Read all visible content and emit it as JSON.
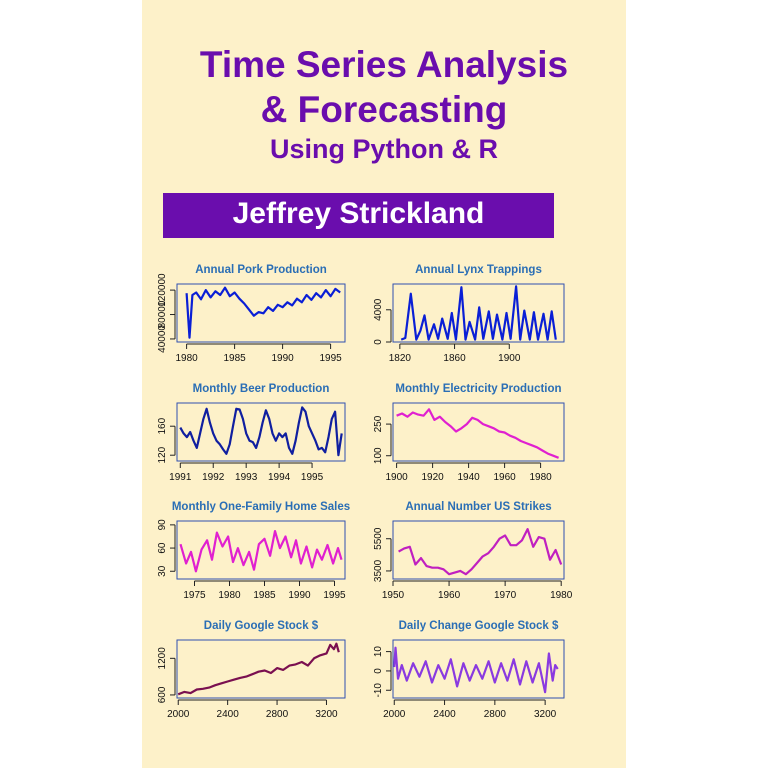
{
  "book": {
    "title_line1": "Time Series Analysis",
    "title_line2": "& Forecasting",
    "title_line3": "Using Python & R",
    "author": "Jeffrey Strickland"
  },
  "colors": {
    "background": "#fdf1c9",
    "title": "#6a0dad",
    "author_box": "#6a0dad",
    "chart_title": "#2a6eb5"
  },
  "chart_data": [
    {
      "type": "line",
      "title": "Annual Pork Production",
      "color": "#0a1fd6",
      "xlim": [
        1979,
        1996.5
      ],
      "ylim": [
        35000,
        130000
      ],
      "xticks": [
        1980,
        1985,
        1990,
        1995
      ],
      "xtick_labels": [
        "1980",
        "1985",
        "1990",
        "1995"
      ],
      "yticks": [
        40000,
        80000,
        120000
      ],
      "ytick_labels": [
        "40000",
        "80000",
        "120000"
      ],
      "series": [
        {
          "x": [
            1980,
            1980.3,
            1980.6,
            1981,
            1981.5,
            1982,
            1982.5,
            1983,
            1983.5,
            1984,
            1984.5,
            1985,
            1985.5,
            1986,
            1986.5,
            1987,
            1987.5,
            1988,
            1988.5,
            1989,
            1989.5,
            1990,
            1990.5,
            1991,
            1991.5,
            1992,
            1992.5,
            1993,
            1993.5,
            1994,
            1994.5,
            1995,
            1995.5,
            1996
          ],
          "y": [
            115000,
            42000,
            112000,
            116000,
            105000,
            120000,
            108000,
            118000,
            112000,
            124000,
            110000,
            116000,
            106000,
            98000,
            88000,
            78000,
            84000,
            82000,
            92000,
            86000,
            96000,
            92000,
            100000,
            95000,
            106000,
            100000,
            112000,
            104000,
            115000,
            108000,
            120000,
            110000,
            122000,
            116000
          ]
        }
      ]
    },
    {
      "type": "line",
      "title": "Annual Lynx Trappings",
      "color": "#0a1fd6",
      "xlim": [
        1815,
        1940
      ],
      "ylim": [
        0,
        7200
      ],
      "xticks": [
        1820,
        1860,
        1900
      ],
      "xtick_labels": [
        "1820",
        "1860",
        "1900"
      ],
      "yticks": [
        0,
        4000
      ],
      "ytick_labels": [
        "0",
        "4000"
      ],
      "series": [
        {
          "x": [
            1821,
            1824,
            1828,
            1832,
            1835,
            1838,
            1841,
            1845,
            1848,
            1851,
            1855,
            1858,
            1861,
            1865,
            1868,
            1871,
            1875,
            1878,
            1881,
            1885,
            1888,
            1891,
            1895,
            1898,
            1901,
            1905,
            1908,
            1911,
            1915,
            1918,
            1921,
            1925,
            1928,
            1931,
            1934
          ],
          "y": [
            300,
            500,
            6000,
            300,
            1400,
            3300,
            300,
            2200,
            400,
            2900,
            400,
            3600,
            300,
            6800,
            300,
            2500,
            300,
            4300,
            400,
            3800,
            400,
            3400,
            300,
            3600,
            400,
            6900,
            300,
            3900,
            300,
            3700,
            300,
            3500,
            300,
            3800,
            300
          ]
        }
      ]
    },
    {
      "type": "line",
      "title": "Monthly  Beer Production",
      "color": "#101fa0",
      "xlim": [
        1990.9,
        1996
      ],
      "ylim": [
        112,
        192
      ],
      "xticks": [
        1991,
        1992,
        1993,
        1994,
        1995
      ],
      "xtick_labels": [
        "1991",
        "1992",
        "1993",
        "1994",
        "1995"
      ],
      "yticks": [
        120,
        160
      ],
      "ytick_labels": [
        "120",
        "160"
      ],
      "series": [
        {
          "x": [
            1991,
            1991.1,
            1991.2,
            1991.3,
            1991.4,
            1991.5,
            1991.6,
            1991.7,
            1991.8,
            1991.9,
            1992,
            1992.1,
            1992.2,
            1992.3,
            1992.4,
            1992.5,
            1992.6,
            1992.7,
            1992.8,
            1992.9,
            1993,
            1993.1,
            1993.2,
            1993.3,
            1993.4,
            1993.5,
            1993.6,
            1993.7,
            1993.8,
            1993.9,
            1994,
            1994.1,
            1994.2,
            1994.3,
            1994.4,
            1994.5,
            1994.6,
            1994.7,
            1994.8,
            1994.9,
            1995,
            1995.1,
            1995.2,
            1995.3,
            1995.4,
            1995.5,
            1995.6,
            1995.7,
            1995.8,
            1995.9
          ],
          "y": [
            158,
            150,
            145,
            152,
            140,
            130,
            150,
            170,
            184,
            165,
            150,
            140,
            135,
            128,
            122,
            135,
            160,
            184,
            183,
            170,
            150,
            140,
            138,
            130,
            145,
            165,
            182,
            170,
            150,
            140,
            150,
            145,
            150,
            130,
            122,
            140,
            165,
            186,
            180,
            160,
            150,
            140,
            128,
            130,
            124,
            145,
            170,
            180,
            120,
            150
          ]
        }
      ]
    },
    {
      "type": "line",
      "title": "Monthly Electricity Production",
      "color": "#e020d0",
      "xlim": [
        1898,
        1993
      ],
      "ylim": [
        75,
        350
      ],
      "xticks": [
        1900,
        1920,
        1940,
        1960,
        1980
      ],
      "xtick_labels": [
        "1900",
        "1920",
        "1940",
        "1960",
        "1980"
      ],
      "yticks": [
        100,
        250
      ],
      "ytick_labels": [
        "100",
        "250"
      ],
      "series": [
        {
          "x": [
            1900,
            1903,
            1906,
            1909,
            1912,
            1915,
            1918,
            1921,
            1924,
            1927,
            1930,
            1933,
            1936,
            1939,
            1942,
            1945,
            1948,
            1951,
            1954,
            1957,
            1960,
            1963,
            1966,
            1969,
            1972,
            1975,
            1978,
            1981,
            1984,
            1987,
            1990
          ],
          "y": [
            290,
            300,
            285,
            305,
            295,
            290,
            320,
            270,
            285,
            260,
            240,
            215,
            230,
            250,
            280,
            270,
            250,
            240,
            230,
            215,
            210,
            195,
            185,
            170,
            160,
            150,
            140,
            125,
            110,
            100,
            90
          ]
        }
      ]
    },
    {
      "type": "line",
      "title": "Monthly One-Family Home Sales",
      "color": "#e020d0",
      "xlim": [
        1972.5,
        1996.5
      ],
      "ylim": [
        20,
        95
      ],
      "xticks": [
        1975,
        1980,
        1985,
        1990,
        1995
      ],
      "xtick_labels": [
        "1975",
        "1980",
        "1985",
        "1990",
        "1995"
      ],
      "yticks": [
        30,
        60,
        90
      ],
      "ytick_labels": [
        "30",
        "60",
        "90"
      ],
      "series": [
        {
          "x": [
            1973,
            1973.8,
            1974.5,
            1975.2,
            1976,
            1976.8,
            1977.5,
            1978.2,
            1979,
            1979.8,
            1980.5,
            1981.2,
            1982,
            1982.8,
            1983.5,
            1984.2,
            1985,
            1985.8,
            1986.5,
            1987.2,
            1988,
            1988.8,
            1989.5,
            1990.2,
            1991,
            1991.8,
            1992.5,
            1993.2,
            1994,
            1994.8,
            1995.5,
            1996
          ],
          "y": [
            65,
            40,
            55,
            30,
            58,
            70,
            45,
            80,
            62,
            75,
            42,
            60,
            38,
            55,
            32,
            65,
            72,
            50,
            82,
            60,
            75,
            48,
            70,
            40,
            62,
            35,
            58,
            45,
            64,
            40,
            60,
            45
          ]
        }
      ]
    },
    {
      "type": "line",
      "title": "Annual Number US Strikes",
      "color": "#c020c0",
      "xlim": [
        1950,
        1980.5
      ],
      "ylim": [
        3000,
        6600
      ],
      "xticks": [
        1950,
        1960,
        1970,
        1980
      ],
      "xtick_labels": [
        "1950",
        "1960",
        "1970",
        "1980"
      ],
      "yticks": [
        3500,
        5500
      ],
      "ytick_labels": [
        "3500",
        "5500"
      ],
      "series": [
        {
          "x": [
            1951,
            1952,
            1953,
            1954,
            1955,
            1956,
            1957,
            1958,
            1959,
            1960,
            1961,
            1962,
            1963,
            1964,
            1965,
            1966,
            1967,
            1968,
            1969,
            1970,
            1971,
            1972,
            1973,
            1974,
            1975,
            1976,
            1977,
            1978,
            1979,
            1980
          ],
          "y": [
            4700,
            4900,
            5000,
            3900,
            4300,
            3800,
            3700,
            3700,
            3600,
            3300,
            3400,
            3500,
            3300,
            3600,
            4000,
            4400,
            4600,
            5000,
            5500,
            5700,
            5100,
            5100,
            5400,
            6100,
            5000,
            5600,
            5500,
            4200,
            4800,
            3900
          ]
        }
      ]
    },
    {
      "type": "line",
      "title": "Daily Google Stock $",
      "color": "#7a1050",
      "xlim": [
        1990,
        3350
      ],
      "ylim": [
        550,
        1500
      ],
      "xticks": [
        2000,
        2400,
        2800,
        3200
      ],
      "xtick_labels": [
        "2000",
        "2400",
        "2800",
        "3200"
      ],
      "yticks": [
        600,
        1200
      ],
      "ytick_labels": [
        "600",
        "1200"
      ],
      "series": [
        {
          "x": [
            2000,
            2050,
            2100,
            2150,
            2200,
            2250,
            2300,
            2350,
            2400,
            2450,
            2500,
            2550,
            2600,
            2650,
            2700,
            2750,
            2800,
            2850,
            2900,
            2950,
            3000,
            3050,
            3100,
            3150,
            3200,
            3230,
            3260,
            3280,
            3300
          ],
          "y": [
            610,
            650,
            630,
            690,
            700,
            720,
            760,
            790,
            820,
            850,
            880,
            900,
            940,
            980,
            1000,
            960,
            1040,
            1010,
            1080,
            1100,
            1140,
            1080,
            1200,
            1250,
            1280,
            1420,
            1350,
            1440,
            1300
          ]
        }
      ]
    },
    {
      "type": "line",
      "title": "Daily Change Google Stock $",
      "color": "#8a3ae0",
      "xlim": [
        1990,
        3350
      ],
      "ylim": [
        -14,
        16
      ],
      "xticks": [
        2000,
        2400,
        2800,
        3200
      ],
      "xtick_labels": [
        "2000",
        "2400",
        "2800",
        "3200"
      ],
      "yticks": [
        -10,
        0,
        10
      ],
      "ytick_labels": [
        "-10",
        "0",
        "10"
      ],
      "series": [
        {
          "x": [
            2000,
            2010,
            2030,
            2060,
            2100,
            2150,
            2200,
            2250,
            2300,
            2350,
            2400,
            2450,
            2500,
            2550,
            2600,
            2650,
            2700,
            2750,
            2800,
            2850,
            2900,
            2950,
            3000,
            3050,
            3100,
            3150,
            3200,
            3230,
            3260,
            3280,
            3300
          ],
          "y": [
            2,
            12,
            -4,
            3,
            -5,
            4,
            -3,
            5,
            -6,
            3,
            -4,
            6,
            -8,
            4,
            -5,
            3,
            -4,
            5,
            -6,
            4,
            -5,
            6,
            -7,
            5,
            -6,
            4,
            -11,
            9,
            -5,
            3,
            1
          ]
        }
      ]
    }
  ]
}
